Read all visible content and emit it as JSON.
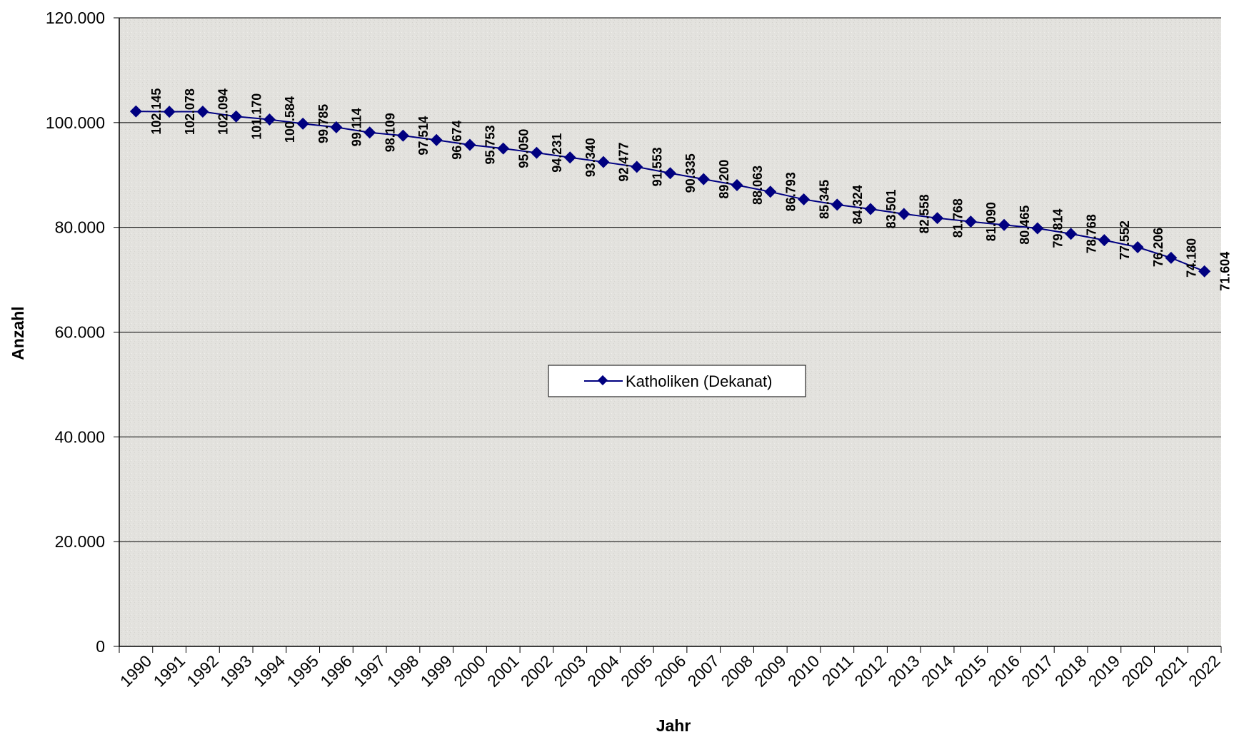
{
  "chart_data": {
    "type": "line",
    "title": "",
    "xlabel": "Jahr",
    "ylabel": "Anzahl",
    "ylim": [
      0,
      120000
    ],
    "yticks": [
      0,
      20000,
      40000,
      60000,
      80000,
      100000,
      120000
    ],
    "ytick_labels": [
      "0",
      "20.000",
      "40.000",
      "60.000",
      "80.000",
      "100.000",
      "120.000"
    ],
    "categories": [
      "1990",
      "1991",
      "1992",
      "1993",
      "1994",
      "1995",
      "1996",
      "1997",
      "1998",
      "1999",
      "2000",
      "2001",
      "2002",
      "2003",
      "2004",
      "2005",
      "2006",
      "2007",
      "2008",
      "2009",
      "2010",
      "2011",
      "2012",
      "2013",
      "2014",
      "2015",
      "2016",
      "2017",
      "2018",
      "2019",
      "2020",
      "2021",
      "2022"
    ],
    "series": [
      {
        "name": "Katholiken (Dekanat)",
        "color": "#000080",
        "values": [
          102145,
          102078,
          102094,
          101170,
          100584,
          99785,
          99114,
          98109,
          97514,
          96674,
          95753,
          95050,
          94231,
          93340,
          92477,
          91553,
          90335,
          89200,
          88063,
          86793,
          85345,
          84324,
          83501,
          82558,
          81768,
          81090,
          80465,
          79814,
          78768,
          77552,
          76206,
          74180,
          71604
        ],
        "labels": [
          "102.145",
          "102.078",
          "102.094",
          "101.170",
          "100.584",
          "99.785",
          "99.114",
          "98.109",
          "97.514",
          "96.674",
          "95.753",
          "95.050",
          "94.231",
          "93.340",
          "92.477",
          "91.553",
          "90.335",
          "89.200",
          "88.063",
          "86.793",
          "85.345",
          "84.324",
          "83.501",
          "82.558",
          "81.768",
          "81.090",
          "80.465",
          "79.814",
          "78.768",
          "77.552",
          "76.206",
          "74.180",
          "71.604"
        ]
      }
    ],
    "grid": true,
    "legend_position": "center",
    "plot_background": "#e4e3df"
  }
}
